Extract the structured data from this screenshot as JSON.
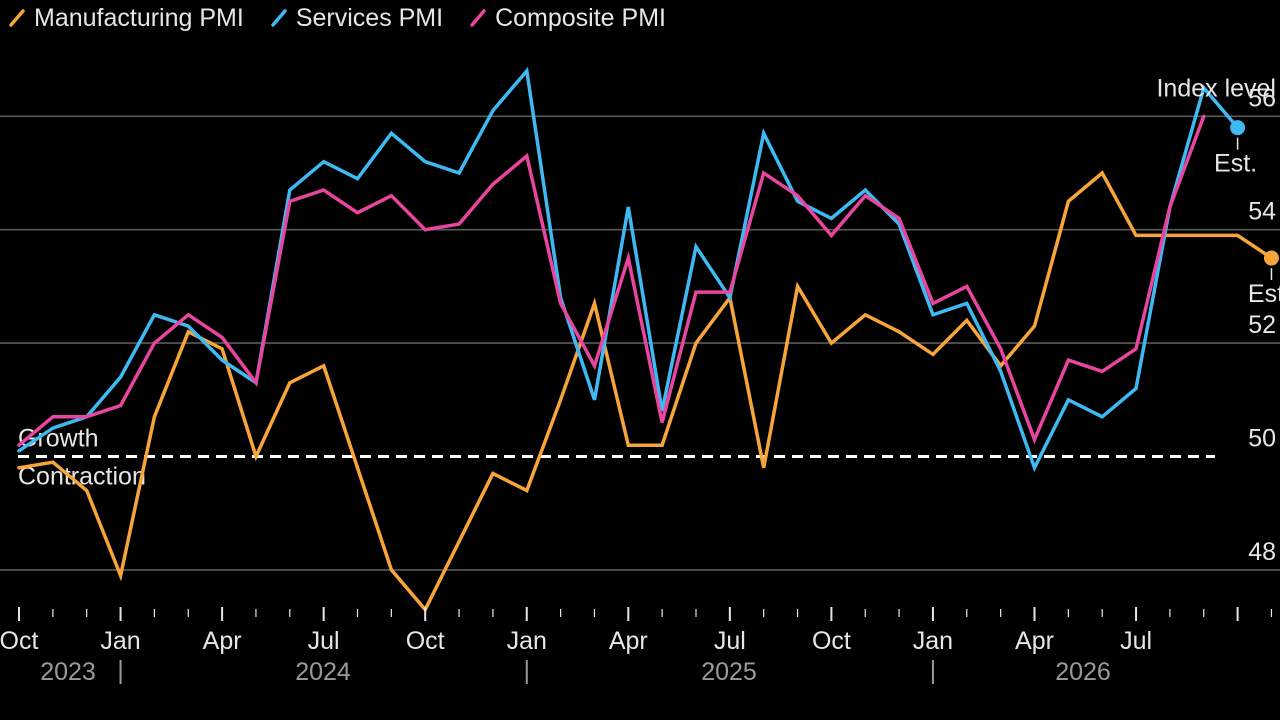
{
  "chart_data": {
    "type": "line",
    "ylabel": "Index level",
    "ylim": [
      46.5,
      57
    ],
    "yticks": [
      48,
      50,
      52,
      54,
      56
    ],
    "reference_line": {
      "value": 50,
      "label_above": "Growth",
      "label_below": "Contraction"
    },
    "x_tick_labels": [
      "Oct",
      "Jan",
      "Apr",
      "Jul",
      "Oct",
      "Jan",
      "Apr",
      "Jul",
      "Oct",
      "Jan",
      "Apr",
      "Jul"
    ],
    "year_labels": [
      "2023",
      "2024",
      "2025",
      "2026"
    ],
    "est_label": "Est.",
    "series": [
      {
        "name": "Manufacturing PMI",
        "color": "#f7a53b",
        "values": [
          49.8,
          49.9,
          49.4,
          47.9,
          50.7,
          52.2,
          51.9,
          50.0,
          51.3,
          51.6,
          49.8,
          48.0,
          47.3,
          48.5,
          49.7,
          49.4,
          51.0,
          52.7,
          50.2,
          50.2,
          52.0,
          52.8,
          49.8,
          53.0,
          52.0,
          52.5,
          52.2,
          51.8,
          52.4,
          51.6,
          52.3,
          54.5,
          55.0,
          53.9,
          53.9,
          53.9,
          53.9,
          53.5
        ]
      },
      {
        "name": "Services PMI",
        "color": "#3fb9f2",
        "values": [
          50.1,
          50.5,
          50.7,
          51.4,
          52.5,
          52.3,
          51.7,
          51.3,
          54.7,
          55.2,
          54.9,
          55.7,
          55.2,
          55.0,
          56.1,
          56.8,
          52.8,
          51.0,
          54.4,
          50.8,
          53.7,
          52.8,
          55.7,
          54.5,
          54.2,
          54.7,
          54.1,
          52.5,
          52.7,
          51.5,
          49.8,
          51.0,
          50.7,
          51.2,
          54.4,
          56.5,
          55.8
        ]
      },
      {
        "name": "Composite PMI",
        "color": "#e8459e",
        "values": [
          50.2,
          50.7,
          50.7,
          50.9,
          52.0,
          52.5,
          52.1,
          51.3,
          54.5,
          54.7,
          54.3,
          54.6,
          54.0,
          54.1,
          54.8,
          55.3,
          52.7,
          51.6,
          53.5,
          50.6,
          52.9,
          52.9,
          55.0,
          54.6,
          53.9,
          54.6,
          54.2,
          52.7,
          53.0,
          51.9,
          50.3,
          51.7,
          51.5,
          51.9,
          54.4,
          56.0
        ]
      }
    ]
  }
}
